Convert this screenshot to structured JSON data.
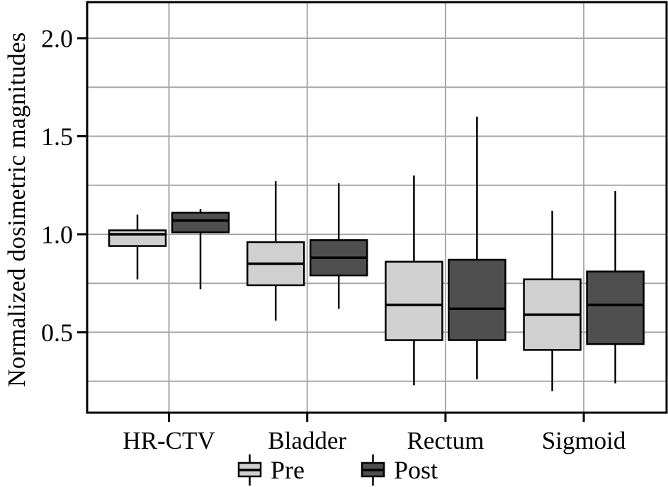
{
  "chart_data": {
    "type": "boxplot",
    "title": "",
    "xlabel": "",
    "ylabel": "Normalized dosimetric magnitudes",
    "categories": [
      "HR-CTV",
      "Bladder",
      "Rectum",
      "Sigmoid"
    ],
    "series": [
      {
        "name": "Pre",
        "color": "#d0d0d0",
        "boxes": [
          {
            "whisker_low": 0.77,
            "q1": 0.94,
            "median": 1.0,
            "q3": 1.02,
            "whisker_high": 1.1
          },
          {
            "whisker_low": 0.56,
            "q1": 0.74,
            "median": 0.85,
            "q3": 0.96,
            "whisker_high": 1.27
          },
          {
            "whisker_low": 0.23,
            "q1": 0.46,
            "median": 0.64,
            "q3": 0.86,
            "whisker_high": 1.3
          },
          {
            "whisker_low": 0.2,
            "q1": 0.41,
            "median": 0.59,
            "q3": 0.77,
            "whisker_high": 1.12
          }
        ]
      },
      {
        "name": "Post",
        "color": "#4f4f4f",
        "boxes": [
          {
            "whisker_low": 0.72,
            "q1": 1.01,
            "median": 1.07,
            "q3": 1.11,
            "whisker_high": 1.13
          },
          {
            "whisker_low": 0.62,
            "q1": 0.79,
            "median": 0.88,
            "q3": 0.97,
            "whisker_high": 1.26
          },
          {
            "whisker_low": 0.26,
            "q1": 0.46,
            "median": 0.62,
            "q3": 0.87,
            "whisker_high": 1.6
          },
          {
            "whisker_low": 0.24,
            "q1": 0.44,
            "median": 0.64,
            "q3": 0.81,
            "whisker_high": 1.22
          }
        ]
      }
    ],
    "yticks": [
      {
        "value": 0.5,
        "label": "0.5"
      },
      {
        "value": 1.0,
        "label": "1.0"
      },
      {
        "value": 1.5,
        "label": "1.5"
      },
      {
        "value": 2.0,
        "label": "2.0"
      }
    ],
    "ylim": [
      0.09,
      2.184
    ],
    "grid": true,
    "grid_step": 0.25,
    "legend_position": "bottom",
    "colors": {
      "grid": "#a8a8a8",
      "axis": "#000000",
      "pre_fill": "#d0d0d0",
      "post_fill": "#4f4f4f"
    }
  }
}
